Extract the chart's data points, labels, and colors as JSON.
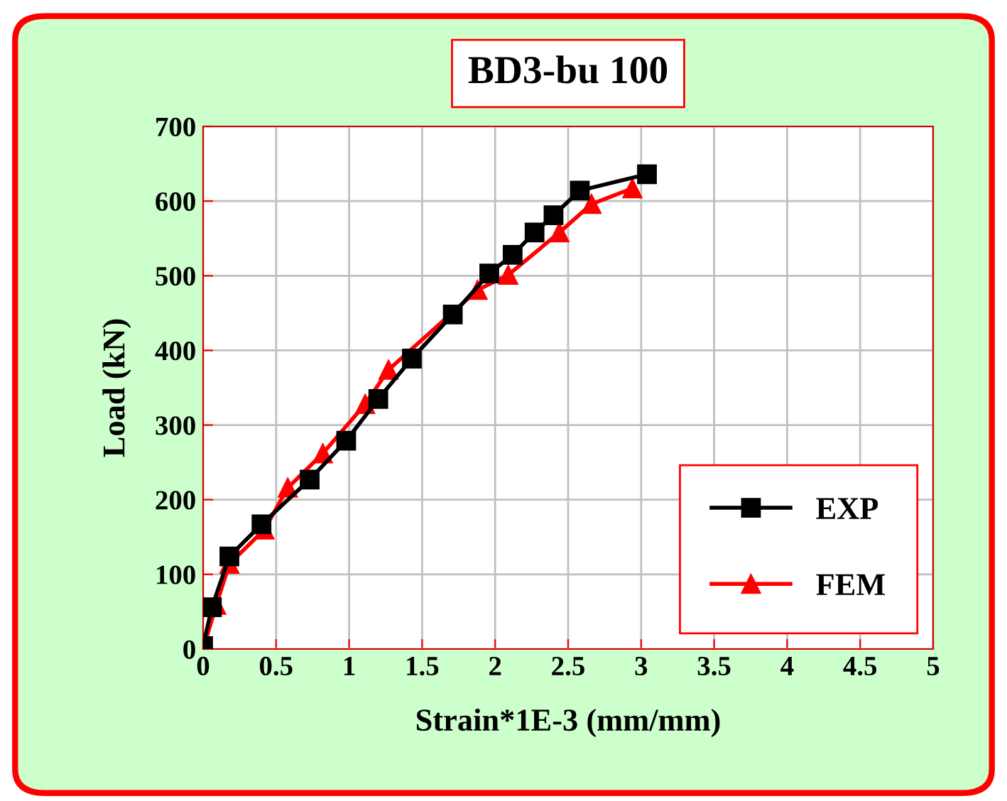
{
  "chart_data": {
    "type": "line",
    "title": "BD3-bu 100",
    "xlabel": "Strain*1E-3 (mm/mm)",
    "ylabel": "Load (kN)",
    "xlim": [
      0,
      5
    ],
    "xticks": [
      0,
      0.5,
      1,
      1.5,
      2,
      2.5,
      3,
      3.5,
      4,
      4.5,
      5
    ],
    "ylim": [
      0,
      700
    ],
    "yticks": [
      0,
      100,
      200,
      300,
      400,
      500,
      600,
      700
    ],
    "grid": true,
    "legend": "bottom right",
    "series": [
      {
        "name": "EXP",
        "color": "#000000",
        "marker": "square",
        "x": [
          0,
          0.06,
          0.18,
          0.4,
          0.73,
          0.98,
          1.2,
          1.43,
          1.71,
          1.96,
          2.12,
          2.27,
          2.4,
          2.58,
          3.04
        ],
        "values": [
          4,
          56,
          124,
          167,
          227,
          279,
          335,
          389,
          448,
          503,
          528,
          558,
          581,
          614,
          636
        ]
      },
      {
        "name": "FEM",
        "color": "#ff0000",
        "marker": "triangle",
        "x": [
          0,
          0.09,
          0.18,
          0.42,
          0.58,
          0.82,
          1.11,
          1.27,
          1.88,
          2.09,
          2.44,
          2.66,
          2.94
        ],
        "values": [
          0,
          59,
          114,
          160,
          216,
          262,
          328,
          374,
          481,
          501,
          558,
          596,
          617
        ]
      }
    ]
  }
}
